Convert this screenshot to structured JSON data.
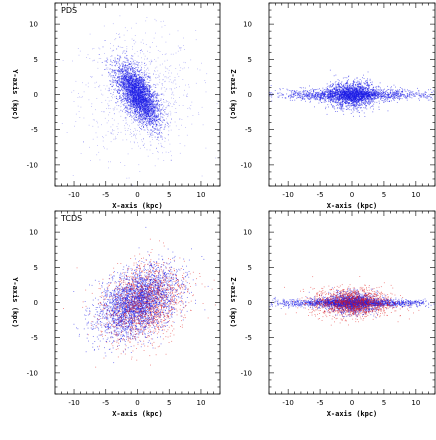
{
  "figure": {
    "panels": [
      {
        "id": "pds-xy",
        "label": "PDS",
        "xlabel": "X-axis (kpc)",
        "ylabel": "Y-axis (kpc)"
      },
      {
        "id": "pds-xz",
        "label": "",
        "xlabel": "X-axis (kpc)",
        "ylabel": "Z-axis (kpc)"
      },
      {
        "id": "tcds-xy",
        "label": "TCDS",
        "xlabel": "X-axis (kpc)",
        "ylabel": "Y-axis (kpc)"
      },
      {
        "id": "tcds-xz",
        "label": "",
        "xlabel": "X-axis (kpc)",
        "ylabel": "Z-axis (kpc)"
      }
    ],
    "colors": {
      "primary": "#1a1ae6",
      "secondary": "#e01a1a",
      "frame": "#000000"
    }
  },
  "chart_data": [
    {
      "type": "scatter",
      "title": "PDS",
      "xlabel": "X-axis (kpc)",
      "ylabel": "Y-axis (kpc)",
      "xlim": [
        -13,
        13
      ],
      "ylim": [
        -13,
        13
      ],
      "xticks": [
        -10,
        -5,
        0,
        5,
        10
      ],
      "yticks": [
        -10,
        -5,
        0,
        5,
        10
      ],
      "series": [
        {
          "color": "#1a1ae6",
          "distribution": "elongated bar, tilted from upper-left to lower-right",
          "center": [
            0,
            0
          ],
          "extent": {
            "major": 5.5,
            "minor": 2.5,
            "angle_deg": -55
          },
          "halo_extent": [
            8,
            8
          ]
        }
      ]
    },
    {
      "type": "scatter",
      "xlabel": "X-axis (kpc)",
      "ylabel": "Z-axis (kpc)",
      "xlim": [
        -13,
        13
      ],
      "ylim": [
        -13,
        13
      ],
      "xticks": [
        -10,
        -5,
        0,
        5,
        10
      ],
      "yticks": [
        -10,
        -5,
        0,
        5,
        10
      ],
      "series": [
        {
          "color": "#1a1ae6",
          "distribution": "thin disk with central bulge",
          "center": [
            0,
            0
          ],
          "extent": {
            "x": 12,
            "z": 1.2,
            "bulge_x": 3.5,
            "bulge_z": 2.2
          }
        }
      ]
    },
    {
      "type": "scatter",
      "title": "TCDS",
      "xlabel": "X-axis (kpc)",
      "ylabel": "Y-axis (kpc)",
      "xlim": [
        -13,
        13
      ],
      "ylim": [
        -13,
        13
      ],
      "xticks": [
        -10,
        -5,
        0,
        5,
        10
      ],
      "yticks": [
        -10,
        -5,
        0,
        5,
        10
      ],
      "series": [
        {
          "color": "#1a1ae6",
          "distribution": "broad elliptical disk, tilted bar",
          "center": [
            0,
            0
          ],
          "extent": {
            "major": 7.5,
            "minor": 4.5,
            "angle_deg": 30
          }
        },
        {
          "color": "#e01a1a",
          "distribution": "diffuse component offset slightly right",
          "center": [
            1,
            0
          ],
          "extent": {
            "major": 7.5,
            "minor": 6,
            "angle_deg": 30
          }
        }
      ]
    },
    {
      "type": "scatter",
      "xlabel": "X-axis (kpc)",
      "ylabel": "Z-axis (kpc)",
      "xlim": [
        -13,
        13
      ],
      "ylim": [
        -13,
        13
      ],
      "xticks": [
        -10,
        -5,
        0,
        5,
        10
      ],
      "yticks": [
        -10,
        -5,
        0,
        5,
        10
      ],
      "series": [
        {
          "color": "#1a1ae6",
          "distribution": "thin disk spanning full width",
          "center": [
            0,
            0
          ],
          "extent": {
            "x": 13,
            "z": 0.8,
            "bulge_x": 4,
            "bulge_z": 1.6
          }
        },
        {
          "color": "#e01a1a",
          "distribution": "thicker diffuse disk",
          "center": [
            0,
            0
          ],
          "extent": {
            "x": 7,
            "z": 3
          }
        }
      ]
    }
  ]
}
